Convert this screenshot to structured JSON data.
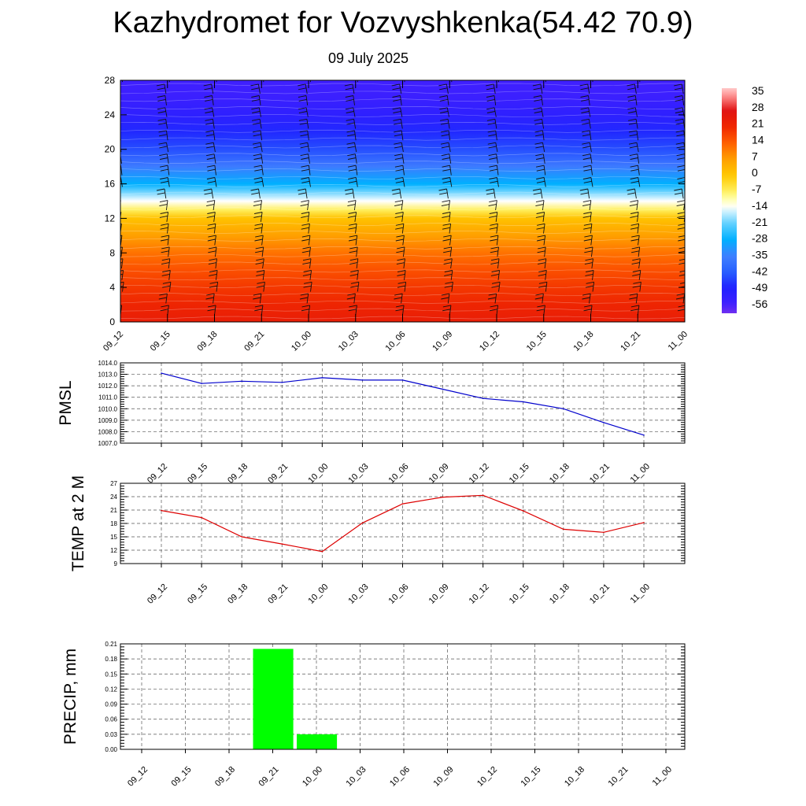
{
  "title": "Kazhydromet for Vozvyshkenka(54.42 70.9)",
  "subtitle": "09 July 2025",
  "time_labels": [
    "09_12",
    "09_15",
    "09_18",
    "09_21",
    "10_00",
    "10_03",
    "10_06",
    "10_09",
    "10_12",
    "10_15",
    "10_18",
    "10_21",
    "11_00"
  ],
  "chart_data": [
    {
      "type": "heatmap",
      "id": "cross-section",
      "title": "",
      "y_ticks": [
        "0",
        "4",
        "8",
        "12",
        "16",
        "20",
        "24",
        "28"
      ],
      "ylim": [
        0,
        28
      ],
      "x_ticks": [
        "09_12",
        "09_15",
        "09_18",
        "09_21",
        "10_00",
        "10_03",
        "10_06",
        "10_09",
        "10_12",
        "10_15",
        "10_18",
        "10_21",
        "11_00"
      ],
      "colorbar_labels": [
        "35",
        "28",
        "21",
        "14",
        "7",
        "0",
        "-7",
        "-14",
        "-21",
        "-28",
        "-35",
        "-42",
        "-49",
        "-56"
      ],
      "colorbar_range": [
        -60,
        38
      ],
      "temperature_profile": {
        "levels": [
          0,
          2,
          4,
          6,
          8,
          10,
          12,
          13,
          14,
          15,
          16,
          18,
          20,
          22,
          24,
          26,
          28
        ],
        "values": [
          24,
          22,
          19,
          16,
          12,
          7,
          1,
          -7,
          -14,
          -20,
          -28,
          -36,
          -44,
          -48,
          -52,
          -55,
          -56
        ]
      },
      "wind_barbs": true
    },
    {
      "type": "line",
      "id": "pmsl",
      "ylabel": "PMSL",
      "categories": [
        "09_12",
        "09_15",
        "09_18",
        "09_21",
        "10_00",
        "10_03",
        "10_06",
        "10_09",
        "10_12",
        "10_15",
        "10_18",
        "10_21",
        "11_00"
      ],
      "values": [
        1013.1,
        1012.2,
        1012.4,
        1012.3,
        1012.7,
        1012.5,
        1012.5,
        1011.7,
        1010.9,
        1010.6,
        1010.0,
        1008.8,
        1007.7
      ],
      "y_ticks": [
        "1007.0",
        "1008.0",
        "1009.0",
        "1010.0",
        "1011.0",
        "1012.0",
        "1013.0",
        "1014.0"
      ],
      "ylim": [
        1007,
        1014
      ],
      "color": "#0000cc"
    },
    {
      "type": "line",
      "id": "temp2m",
      "ylabel": "TEMP at 2 M",
      "categories": [
        "09_12",
        "09_15",
        "09_18",
        "09_21",
        "10_00",
        "10_03",
        "10_06",
        "10_09",
        "10_12",
        "10_15",
        "10_18",
        "10_21",
        "11_00"
      ],
      "values": [
        20.9,
        19.3,
        15.0,
        13.4,
        11.7,
        18.1,
        22.4,
        23.9,
        24.3,
        20.8,
        16.7,
        16.0,
        18.2
      ],
      "y_ticks": [
        "9",
        "12",
        "15",
        "18",
        "21",
        "24",
        "27"
      ],
      "ylim": [
        9,
        27
      ],
      "color": "#dd0000"
    },
    {
      "type": "bar",
      "id": "precip",
      "ylabel": "PRECIP, mm",
      "categories": [
        "09_12",
        "09_15",
        "09_18",
        "09_21",
        "10_00",
        "10_03",
        "10_06",
        "10_09",
        "10_12",
        "10_15",
        "10_18",
        "10_21",
        "11_00"
      ],
      "values": [
        0,
        0,
        0,
        0.2,
        0.03,
        0,
        0,
        0,
        0,
        0,
        0,
        0,
        0
      ],
      "y_ticks": [
        "0.00",
        "0.03",
        "0.06",
        "0.09",
        "0.12",
        "0.15",
        "0.18",
        "0.21"
      ],
      "ylim": [
        0,
        0.21
      ],
      "color": "#00ff00"
    }
  ]
}
